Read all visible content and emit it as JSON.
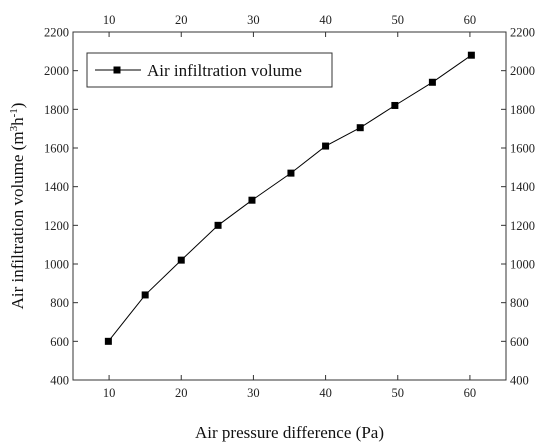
{
  "chart_data": {
    "type": "line",
    "xlabel": "Air pressure difference (Pa)",
    "ylabel_parts": [
      "Air infiltration volume (m",
      "3",
      "h",
      "-1",
      ")"
    ],
    "xlim": [
      5,
      65
    ],
    "ylim": [
      400,
      2200
    ],
    "xticks": [
      10,
      20,
      30,
      40,
      50,
      60
    ],
    "yticks": [
      400,
      600,
      800,
      1000,
      1200,
      1400,
      1600,
      1800,
      2000,
      2200
    ],
    "grid": false,
    "legend_position": "top-left",
    "marker": "square",
    "series": [
      {
        "name": "Air infiltration volume",
        "color": "#000000",
        "x": [
          9.9,
          15.0,
          20.0,
          25.1,
          29.8,
          35.2,
          40.0,
          44.8,
          49.6,
          54.8,
          60.2
        ],
        "y": [
          600,
          840,
          1020,
          1200,
          1330,
          1470,
          1610,
          1705,
          1820,
          1940,
          2080
        ]
      }
    ]
  }
}
